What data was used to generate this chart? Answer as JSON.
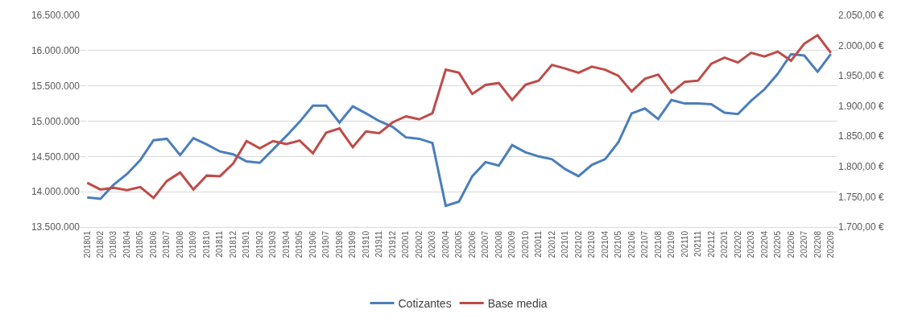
{
  "chart_data": {
    "type": "line",
    "categories": [
      "201801",
      "201802",
      "201803",
      "201804",
      "201805",
      "201806",
      "201807",
      "201808",
      "201809",
      "201810",
      "201811",
      "201812",
      "201901",
      "201902",
      "201903",
      "201904",
      "201905",
      "201906",
      "201907",
      "201908",
      "201909",
      "201910",
      "201911",
      "201912",
      "202001",
      "202002",
      "202003",
      "202004",
      "202005",
      "202006",
      "202007",
      "202008",
      "202009",
      "202010",
      "202011",
      "202012",
      "202101",
      "202102",
      "202103",
      "202104",
      "202105",
      "202106",
      "202107",
      "202108",
      "202109",
      "202110",
      "202111",
      "202112",
      "202201",
      "202202",
      "202203",
      "202204",
      "202205",
      "202206",
      "202207",
      "202208",
      "202209"
    ],
    "series": [
      {
        "name": "Cotizantes",
        "color": "#4a7ebb",
        "values": [
          13920000,
          13900000,
          14100000,
          14250000,
          14450000,
          14730000,
          14750000,
          14520000,
          14760000,
          14670000,
          14570000,
          14530000,
          14430000,
          14410000,
          14600000,
          14790000,
          14990000,
          15220000,
          15220000,
          14980000,
          15210000,
          15110000,
          15000000,
          14920000,
          14770000,
          14750000,
          14690000,
          13800000,
          13860000,
          14220000,
          14420000,
          14370000,
          14660000,
          14560000,
          14500000,
          14460000,
          14320000,
          14220000,
          14380000,
          14460000,
          14700000,
          15110000,
          15180000,
          15030000,
          15300000,
          15250000,
          15250000,
          15240000,
          15120000,
          15100000,
          15290000,
          15450000,
          15670000,
          15950000,
          15930000,
          15700000,
          15950000
        ]
      },
      {
        "name": "Base media",
        "color": "#be4b48",
        "axis": "y2",
        "values": [
          1773,
          1762,
          1765,
          1761,
          1766,
          1748,
          1776,
          1790,
          1762,
          1785,
          1784,
          1805,
          1842,
          1830,
          1842,
          1837,
          1843,
          1822,
          1856,
          1863,
          1832,
          1858,
          1855,
          1873,
          1883,
          1878,
          1888,
          1960,
          1955,
          1920,
          1935,
          1938,
          1910,
          1935,
          1942,
          1968,
          1962,
          1955,
          1965,
          1960,
          1950,
          1924,
          1945,
          1952,
          1922,
          1940,
          1942,
          1970,
          1980,
          1972,
          1988,
          1982,
          1990,
          1975,
          2003,
          2017,
          1988
        ]
      }
    ],
    "ylim": [
      13500000,
      16500000
    ],
    "yticks": [
      {
        "value": 13500000,
        "label": "13.500.000"
      },
      {
        "value": 14000000,
        "label": "14.000.000"
      },
      {
        "value": 14500000,
        "label": "14.500.000"
      },
      {
        "value": 15000000,
        "label": "15.000.000"
      },
      {
        "value": 15500000,
        "label": "15.500.000"
      },
      {
        "value": 16000000,
        "label": "16.000.000"
      },
      {
        "value": 16500000,
        "label": "16.500.000"
      }
    ],
    "y2lim": [
      1700,
      2050
    ],
    "y2ticks": [
      {
        "value": 1700,
        "label": "1.700,00 €"
      },
      {
        "value": 1750,
        "label": "1.750,00 €"
      },
      {
        "value": 1800,
        "label": "1.800,00 €"
      },
      {
        "value": 1850,
        "label": "1.850,00 €"
      },
      {
        "value": 1900,
        "label": "1.900,00 €"
      },
      {
        "value": 1950,
        "label": "1.950,00 €"
      },
      {
        "value": 2000,
        "label": "2.000,00 €"
      },
      {
        "value": 2050,
        "label": "2.050,00 €"
      }
    ],
    "grid": "y",
    "legend": "bottom",
    "line_style": "solid"
  }
}
